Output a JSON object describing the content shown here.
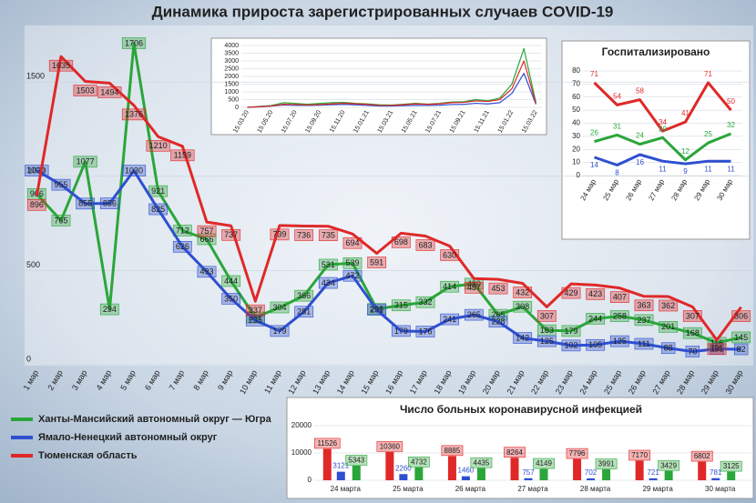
{
  "chart_data": [
    {
      "type": "line",
      "title": "Динамика прироста зарегистрированных случаев COVID-19",
      "categories": [
        "1 мар",
        "2 мар",
        "3 мар",
        "4 мар",
        "5 мар",
        "6 мар",
        "7 мар",
        "8 мар",
        "9 мар",
        "10 мар",
        "11 мар",
        "12 мар",
        "13 мар",
        "14 мар",
        "15 мар",
        "16 мар",
        "17 мар",
        "18 мар",
        "19 мар",
        "20 мар",
        "21 мар",
        "22 мар",
        "23 мар",
        "24 мар",
        "25 мар",
        "26 мар",
        "27 мар",
        "28 мар",
        "29 мар",
        "30 мар"
      ],
      "series": [
        {
          "name": "Ханты-Мансийский автономный округ — Югра",
          "color": "#2aa63a",
          "values": [
            906,
            765,
            1077,
            294,
            1706,
            921,
            712,
            666,
            444,
            251,
            304,
            366,
            531,
            539,
            296,
            315,
            332,
            414,
            430,
            265,
            308,
            183,
            179,
            244,
            258,
            237,
            201,
            168,
            116,
            145
          ]
        },
        {
          "name": "Ямало-Ненецкий автономный округ",
          "color": "#2f4fd0",
          "values": [
            1030,
            955,
            855,
            856,
            1030,
            825,
            626,
            493,
            350,
            235,
            179,
            281,
            434,
            472,
            291,
            179,
            176,
            241,
            265,
            228,
            142,
            125,
            102,
            105,
            125,
            111,
            88,
            70,
            84,
            82
          ]
        },
        {
          "name": "Тюменская область",
          "color": "#e02828",
          "values": [
            896,
            1635,
            1503,
            1494,
            1376,
            1210,
            1159,
            757,
            737,
            337,
            739,
            736,
            735,
            694,
            591,
            698,
            683,
            630,
            457,
            453,
            432,
            307,
            429,
            423,
            407,
            363,
            362,
            307,
            131,
            306
          ]
        }
      ],
      "ylim": [
        0,
        1800
      ],
      "yticks": [
        0,
        500,
        1000,
        1500
      ],
      "grid": true
    },
    {
      "type": "line",
      "categories": [
        "15.03.20",
        null,
        "15.05.20",
        null,
        "15.07.20",
        null,
        "15.09.20",
        null,
        "15.11.20",
        null,
        "15.01.21",
        null,
        "15.03.21",
        null,
        "15.05.21",
        null,
        "15.07.21",
        null,
        "15.09.21",
        null,
        "15.11.21",
        null,
        "15.01.22",
        null,
        "15.03.22"
      ],
      "series": [
        {
          "color": "#2aa63a",
          "values": [
            0,
            60,
            120,
            300,
            250,
            200,
            250,
            300,
            320,
            260,
            220,
            160,
            150,
            200,
            260,
            210,
            260,
            350,
            360,
            500,
            420,
            600,
            1500,
            3800,
            300
          ]
        },
        {
          "color": "#2f4fd0",
          "values": [
            0,
            30,
            80,
            150,
            130,
            120,
            140,
            170,
            190,
            160,
            120,
            90,
            90,
            110,
            130,
            120,
            140,
            180,
            190,
            260,
            220,
            300,
            900,
            2200,
            200
          ]
        },
        {
          "color": "#e02828",
          "values": [
            0,
            40,
            90,
            200,
            180,
            150,
            180,
            220,
            260,
            230,
            190,
            130,
            120,
            170,
            220,
            190,
            230,
            300,
            320,
            420,
            380,
            500,
            1200,
            3000,
            250
          ]
        }
      ],
      "ylim": [
        0,
        4000
      ],
      "yticks": [
        0,
        500,
        1000,
        1500,
        2000,
        2500,
        3000,
        3500,
        4000
      ],
      "grid": true
    },
    {
      "type": "line",
      "title": "Госпитализировано",
      "categories": [
        "24 мар",
        "25 мар",
        "26 мар",
        "27 мар",
        "28 мар",
        "29 мар",
        "30 мар"
      ],
      "series": [
        {
          "color": "#e02828",
          "values": [
            71,
            54,
            58,
            34,
            41,
            71,
            50
          ]
        },
        {
          "color": "#2aa63a",
          "values": [
            26,
            31,
            24,
            29,
            12,
            25,
            32
          ]
        },
        {
          "color": "#2f4fd0",
          "values": [
            14,
            8,
            16,
            11,
            9,
            11,
            11
          ]
        }
      ],
      "ylim": [
        0,
        80
      ],
      "yticks": [
        0,
        10,
        20,
        30,
        40,
        50,
        60,
        70,
        80
      ],
      "grid": true
    },
    {
      "type": "bar",
      "title": "Число больных коронавирусной инфекцией",
      "categories": [
        "24 марта",
        "25 марта",
        "26 марта",
        "27 марта",
        "28 марта",
        "29 марта",
        "30 марта"
      ],
      "series": [
        {
          "color": "#e02828",
          "values": [
            11526,
            10360,
            8885,
            8264,
            7796,
            7170,
            6802
          ]
        },
        {
          "color": "#2f4fd0",
          "values": [
            3121,
            2260,
            1460,
            757,
            702,
            721,
            781
          ]
        },
        {
          "color": "#2aa63a",
          "values": [
            5343,
            4732,
            4435,
            4149,
            3991,
            3429,
            3125
          ]
        }
      ],
      "ylim": [
        0,
        20000
      ],
      "yticks": [
        0,
        10000,
        20000
      ],
      "grid": true
    }
  ]
}
